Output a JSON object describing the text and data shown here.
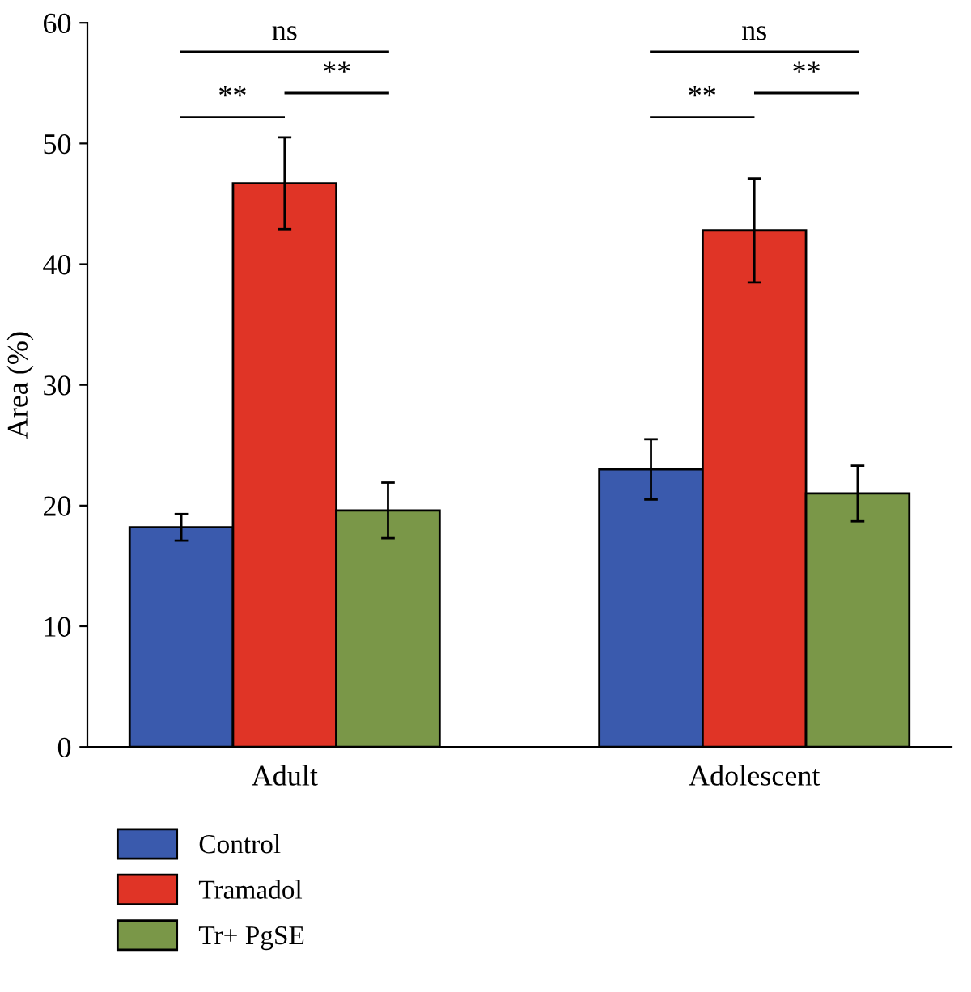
{
  "chart_data": {
    "type": "bar",
    "ylabel": "Area (%)",
    "categories": [
      "Adult",
      "Adolescent"
    ],
    "series": [
      {
        "name": "Control",
        "color": "#3a5aad",
        "values": [
          18.2,
          23.0
        ],
        "errors": [
          1.1,
          2.5
        ]
      },
      {
        "name": "Tramadol",
        "color": "#e03426",
        "values": [
          46.7,
          42.8
        ],
        "errors": [
          3.8,
          4.3
        ]
      },
      {
        "name": "Tr+ PgSE",
        "color": "#7a9748",
        "values": [
          19.6,
          21.0
        ],
        "errors": [
          2.3,
          2.3
        ]
      }
    ],
    "ylim": [
      0,
      60
    ],
    "yticks": [
      0,
      10,
      20,
      30,
      40,
      50,
      60
    ],
    "legend": "bottom",
    "grid": false,
    "annotations": [
      "ns",
      "**",
      "**",
      "ns",
      "**",
      "**"
    ]
  }
}
